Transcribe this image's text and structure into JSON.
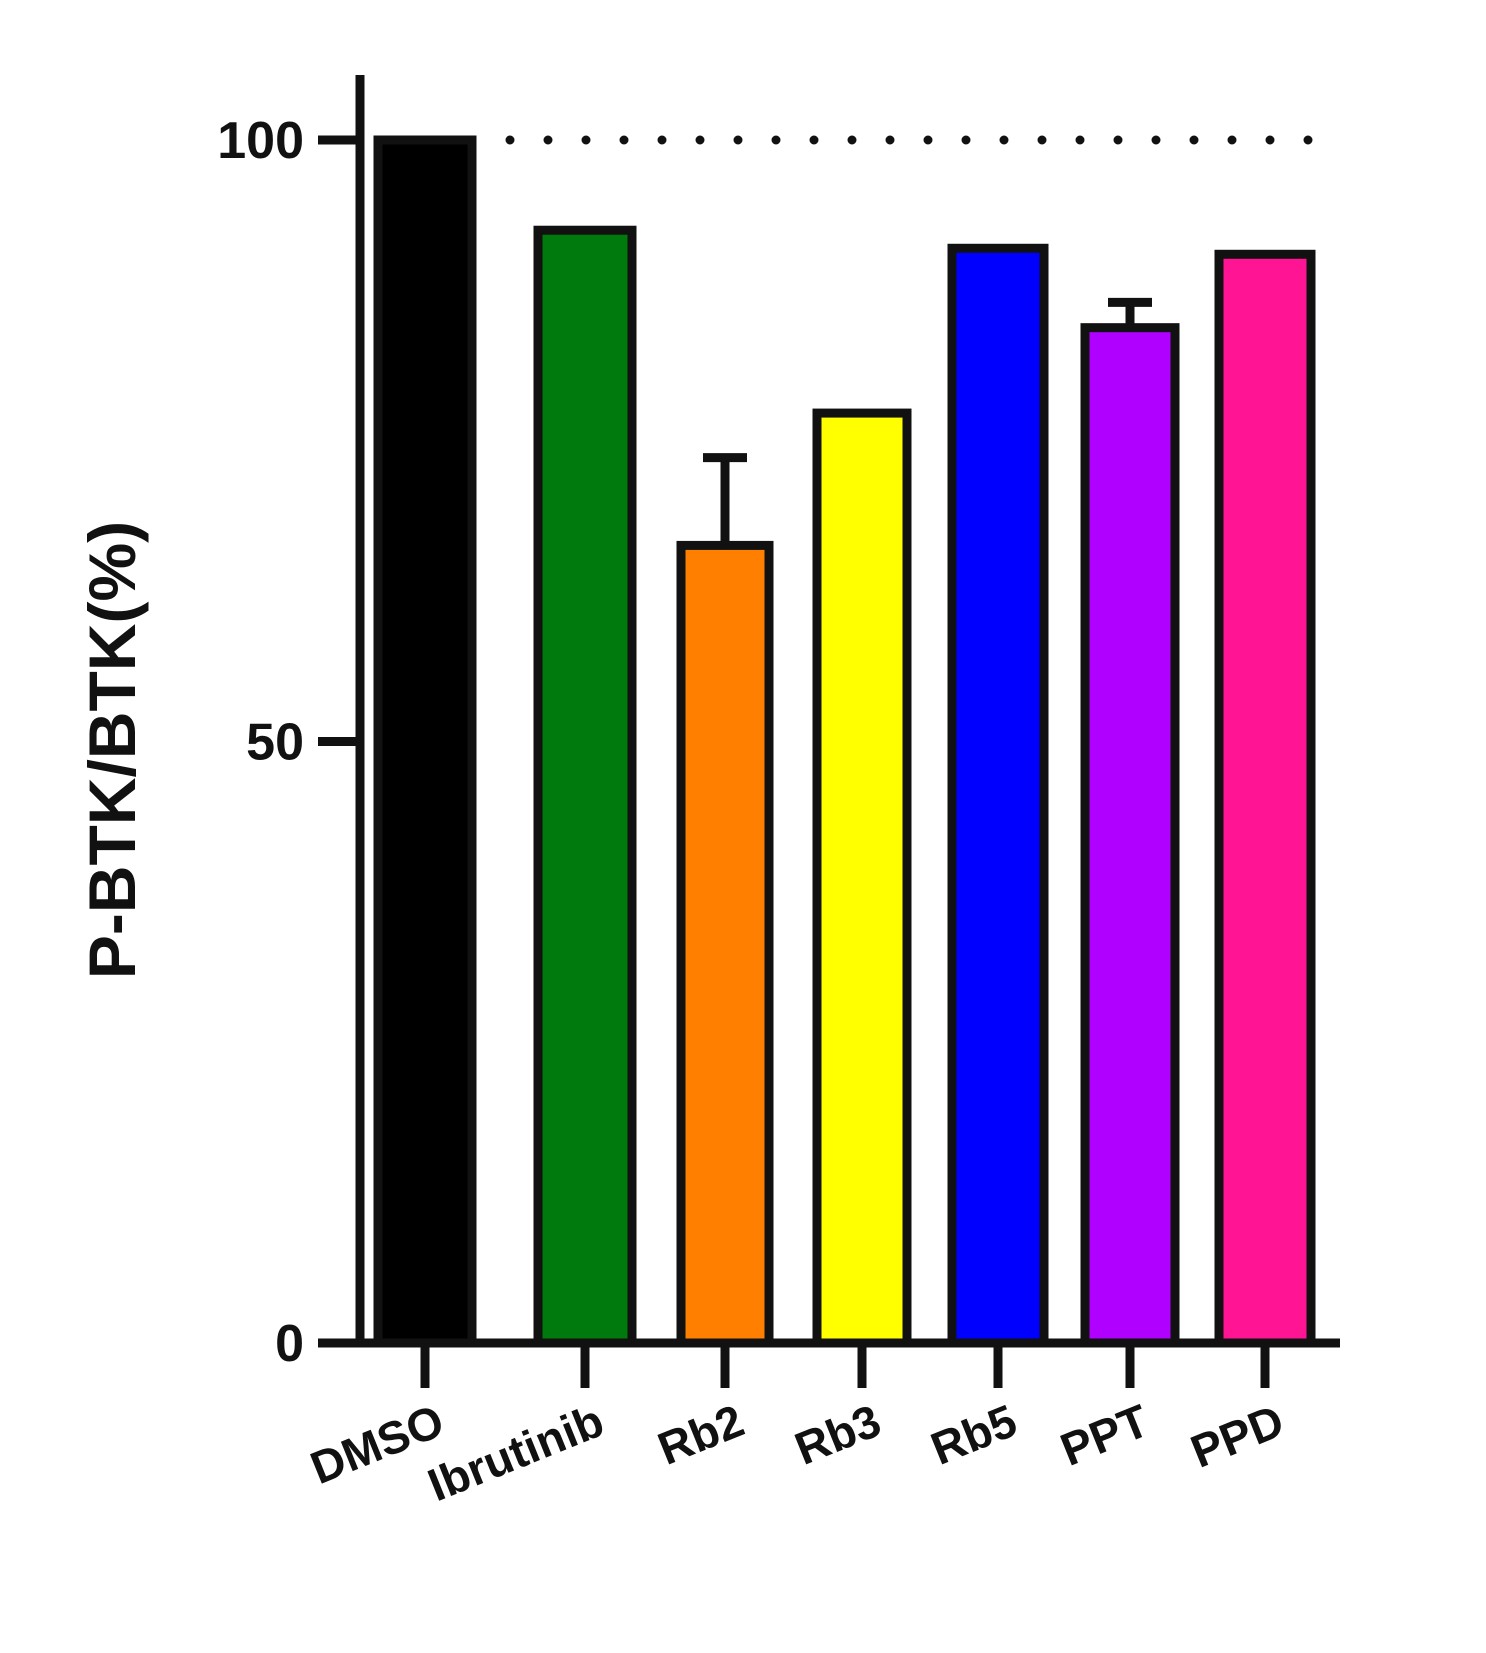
{
  "chart_data": {
    "type": "bar",
    "ylabel": "P-BTK/BTK(%)",
    "xlabel": "",
    "ylim": [
      0,
      100
    ],
    "yticks": [
      0,
      50,
      100
    ],
    "reference_line": {
      "y": 100,
      "style": "dotted"
    },
    "categories": [
      "DMSO",
      "Ibrutinib",
      "Rb2",
      "Rb3",
      "Rb5",
      "PPT",
      "PPD"
    ],
    "values": [
      100,
      92.5,
      66.3,
      77.3,
      91,
      84.4,
      90.5
    ],
    "error_upper": [
      0,
      0,
      7.3,
      0,
      0,
      2.1,
      0
    ],
    "colors": [
      "#000000",
      "#007a0c",
      "#ff8000",
      "#ffff00",
      "#0000ff",
      "#b000ff",
      "#ff1493"
    ]
  }
}
